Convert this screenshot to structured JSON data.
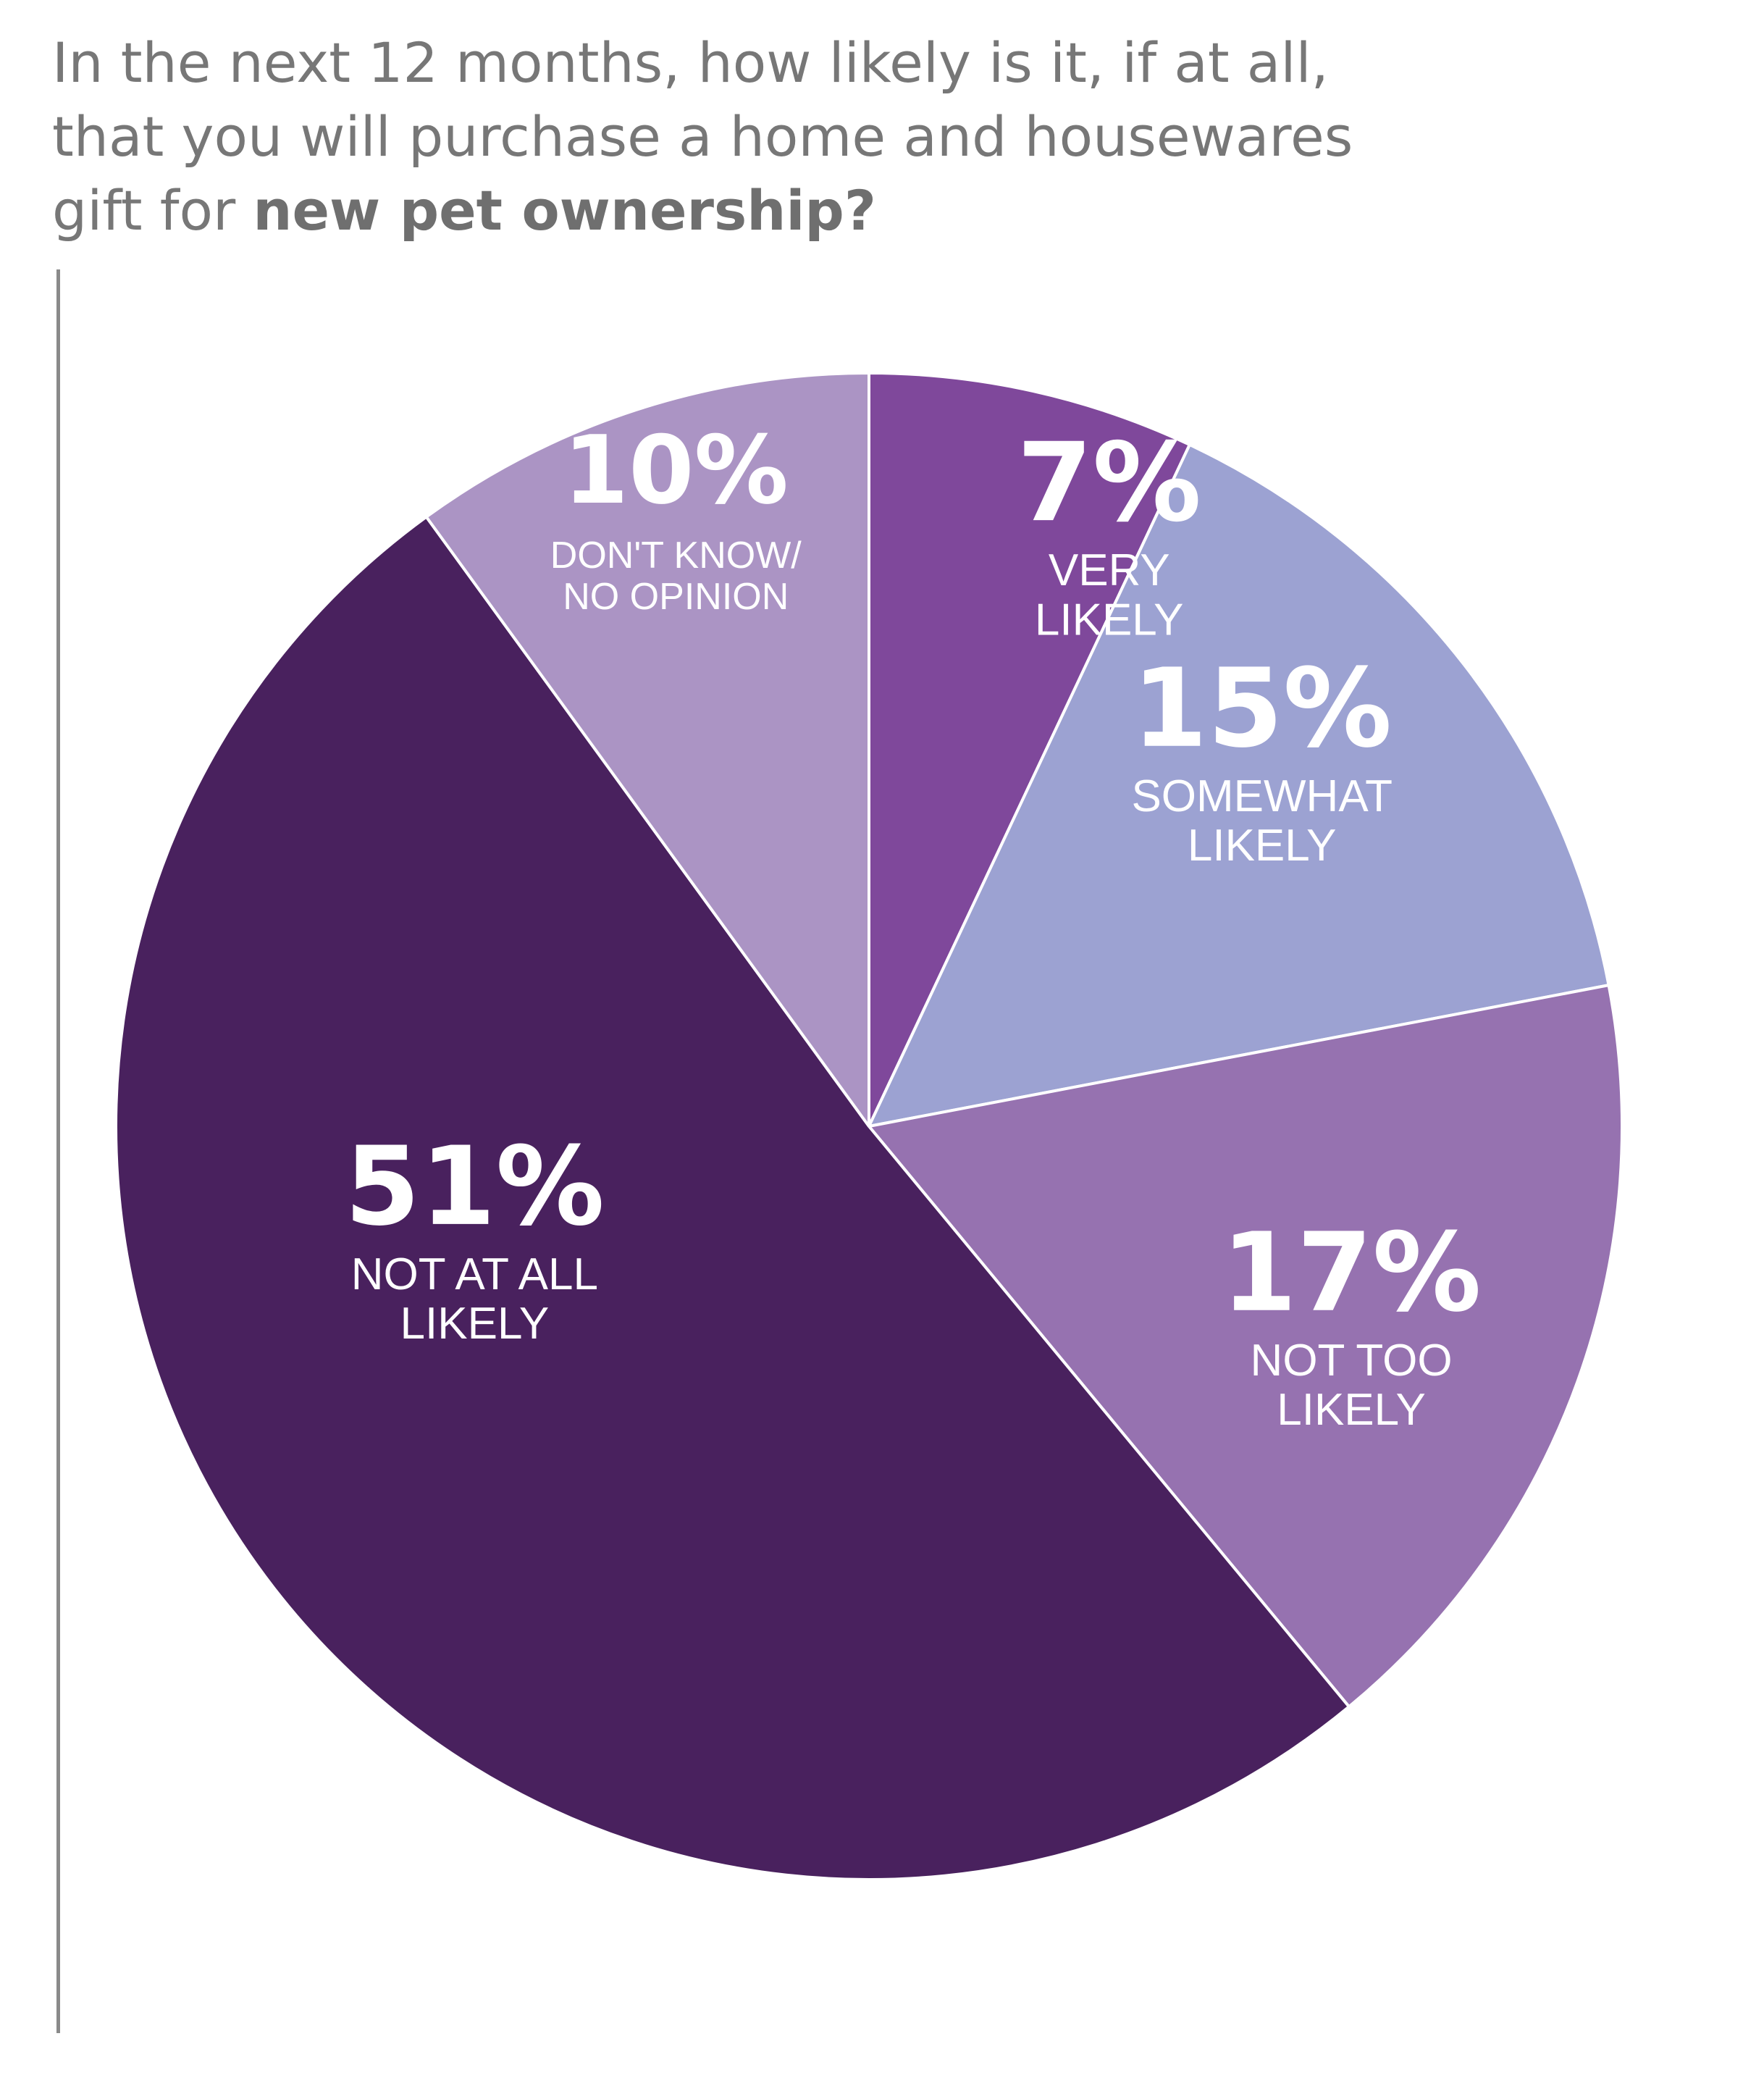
{
  "title": {
    "line1": "In the next 12 months, how likely is it, if at all,",
    "line2": "that you will purchase a home and housewares",
    "line3_prefix": "gift for ",
    "line3_bold": "new pet ownership?"
  },
  "chart_data": {
    "type": "pie",
    "title": "In the next 12 months, how likely is it, if at all, that you will purchase a home and housewares gift for new pet ownership?",
    "unit": "%",
    "start_angle_deg": 0,
    "direction": "clockwise",
    "slices": [
      {
        "label": "VERY LIKELY",
        "label_lines": [
          "VERY",
          "LIKELY"
        ],
        "value": 7,
        "display": "7%",
        "color": "#7f489b"
      },
      {
        "label": "SOMEWHAT LIKELY",
        "label_lines": [
          "SOMEWHAT",
          "LIKELY"
        ],
        "value": 15,
        "display": "15%",
        "color": "#9ca2d2"
      },
      {
        "label": "NOT TOO LIKELY",
        "label_lines": [
          "NOT TOO",
          "LIKELY"
        ],
        "value": 17,
        "display": "17%",
        "color": "#9672b0"
      },
      {
        "label": "NOT AT ALL LIKELY",
        "label_lines": [
          "NOT AT ALL",
          "LIKELY"
        ],
        "value": 51,
        "display": "51%",
        "color": "#49215e"
      },
      {
        "label": "DON'T KNOW/ NO OPINION",
        "label_lines": [
          "DON'T KNOW/",
          "NO OPINION"
        ],
        "value": 10,
        "display": "10%",
        "color": "#ab94c4"
      }
    ]
  }
}
